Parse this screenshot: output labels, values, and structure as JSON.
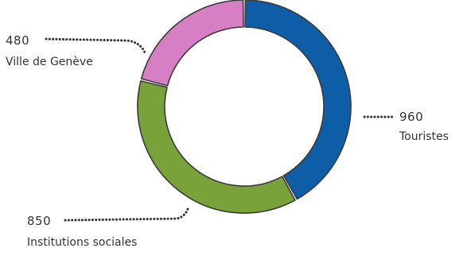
{
  "chart_data": {
    "type": "pie",
    "style": "donut",
    "title": "",
    "categories": [
      "Touristes",
      "Institutions sociales",
      "Ville de Genève"
    ],
    "values": [
      960,
      850,
      480
    ],
    "value_labels": [
      "960",
      "850",
      "480"
    ],
    "colors": [
      "#0d5ea6",
      "#7aa23a",
      "#d77fc4"
    ],
    "legend": "none"
  }
}
